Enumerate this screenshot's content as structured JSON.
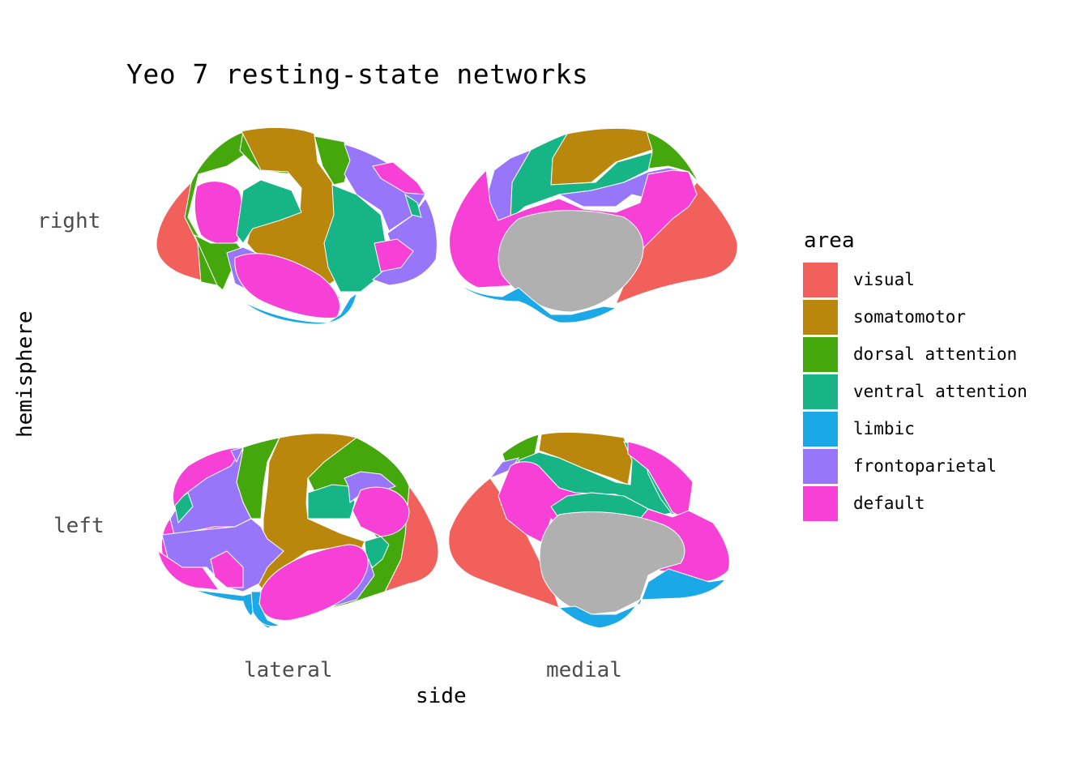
{
  "title": "Yeo 7 resting-state networks",
  "x_axis": {
    "title": "side",
    "levels": [
      "lateral",
      "medial"
    ]
  },
  "y_axis": {
    "title": "hemisphere",
    "levels": [
      "right",
      "left"
    ]
  },
  "legend": {
    "title": "area",
    "items": [
      {
        "label": "visual",
        "color": "#F2605B"
      },
      {
        "label": "somatomotor",
        "color": "#B8870C"
      },
      {
        "label": "dorsal attention",
        "color": "#44A80D"
      },
      {
        "label": "ventral attention",
        "color": "#17B586"
      },
      {
        "label": "limbic",
        "color": "#1AA8E6"
      },
      {
        "label": "frontoparietal",
        "color": "#9776FA"
      },
      {
        "label": "default",
        "color": "#F640D6"
      }
    ]
  },
  "colors": {
    "medial_wall": "#B0B0B0"
  }
}
